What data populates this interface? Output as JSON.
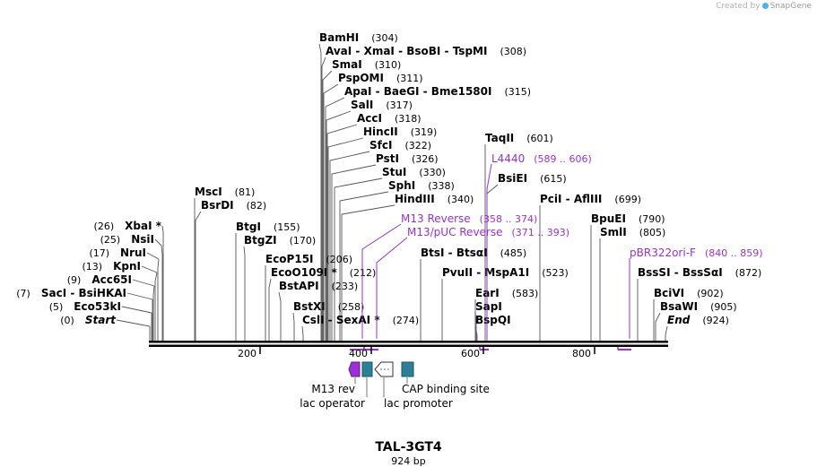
{
  "credit": {
    "text": "Created by",
    "brand": "SnapGene"
  },
  "plasmid": {
    "name": "TAL-3GT4",
    "length": "924 bp"
  },
  "ruler_ticks": [
    "200",
    "400",
    "600",
    "800"
  ],
  "sites": [
    {
      "name": "BamHI",
      "pos": "(304)"
    },
    {
      "name": "AvaI  -  XmaI  -  BsoBI  -  TspMI",
      "pos": "(308)"
    },
    {
      "name": "SmaI",
      "pos": "(310)"
    },
    {
      "name": "PspOMI",
      "pos": "(311)"
    },
    {
      "name": "ApaI  -  BaeGI  -  Bme1580I",
      "pos": "(315)"
    },
    {
      "name": "SalI",
      "pos": "(317)"
    },
    {
      "name": "AccI",
      "pos": "(318)"
    },
    {
      "name": "HincII",
      "pos": "(319)"
    },
    {
      "name": "SfcI",
      "pos": "(322)"
    },
    {
      "name": "PstI",
      "pos": "(326)"
    },
    {
      "name": "StuI",
      "pos": "(330)"
    },
    {
      "name": "SphI",
      "pos": "(338)"
    },
    {
      "name": "HindIII",
      "pos": "(340)"
    },
    {
      "name": "MscI",
      "pos": "(81)"
    },
    {
      "name": "BsrDI",
      "pos": "(82)"
    },
    {
      "name": "BtgI",
      "pos": "(155)"
    },
    {
      "name": "BtgZI",
      "pos": "(170)"
    },
    {
      "name": "EcoP15I",
      "pos": "(206)"
    },
    {
      "name": "EcoO109I *",
      "pos": "(212)"
    },
    {
      "name": "BstAPI",
      "pos": "(233)"
    },
    {
      "name": "BstXI",
      "pos": "(258)"
    },
    {
      "name": "CslI  -  SexAI *",
      "pos": "(274)"
    },
    {
      "name": "TaqII",
      "pos": "(601)"
    },
    {
      "name": "BsiEI",
      "pos": "(615)"
    },
    {
      "name": "PciI  -  AflIII",
      "pos": "(699)"
    },
    {
      "name": "BtsI  -  BtsαI",
      "pos": "(485)"
    },
    {
      "name": "PvuII  -  MspA1I",
      "pos": "(523)"
    },
    {
      "name": "EarI",
      "pos": "(583)"
    },
    {
      "name": "SapI",
      "pos": ""
    },
    {
      "name": "BspQI",
      "pos": ""
    },
    {
      "name": "BpuEI",
      "pos": "(790)"
    },
    {
      "name": "SmlI",
      "pos": "(805)"
    },
    {
      "name": "BssSI  -  BssSαI",
      "pos": "(872)"
    },
    {
      "name": "BciVI",
      "pos": "(902)"
    },
    {
      "name": "BsaWI",
      "pos": "(905)"
    },
    {
      "name": "End",
      "pos": "(924)"
    },
    {
      "name": "XbaI *",
      "pos": "(26)"
    },
    {
      "name": "NsiI",
      "pos": "(25)"
    },
    {
      "name": "NruI",
      "pos": "(17)"
    },
    {
      "name": "KpnI",
      "pos": "(13)"
    },
    {
      "name": "Acc65I",
      "pos": "(9)"
    },
    {
      "name": "SacI  -  BsiHKAI",
      "pos": "(7)"
    },
    {
      "name": "Eco53kI",
      "pos": "(5)"
    },
    {
      "name": "Start",
      "pos": "(0)"
    }
  ],
  "primers": [
    {
      "name": "L4440",
      "range": "(589 .. 606)"
    },
    {
      "name": "M13 Reverse",
      "range": "(358 .. 374)"
    },
    {
      "name": "M13/pUC Reverse",
      "range": "(371 .. 393)"
    },
    {
      "name": "pBR322ori-F",
      "range": "(840 .. 859)"
    }
  ],
  "features": [
    {
      "name": "M13 rev"
    },
    {
      "name": "lac operator"
    },
    {
      "name": "lac promoter"
    },
    {
      "name": "CAP binding site"
    }
  ],
  "colors": {
    "primer": "#9b30d9",
    "feature_teal": "#2e7f95",
    "feature_purple": "#9b30d9",
    "line": "#000000"
  }
}
